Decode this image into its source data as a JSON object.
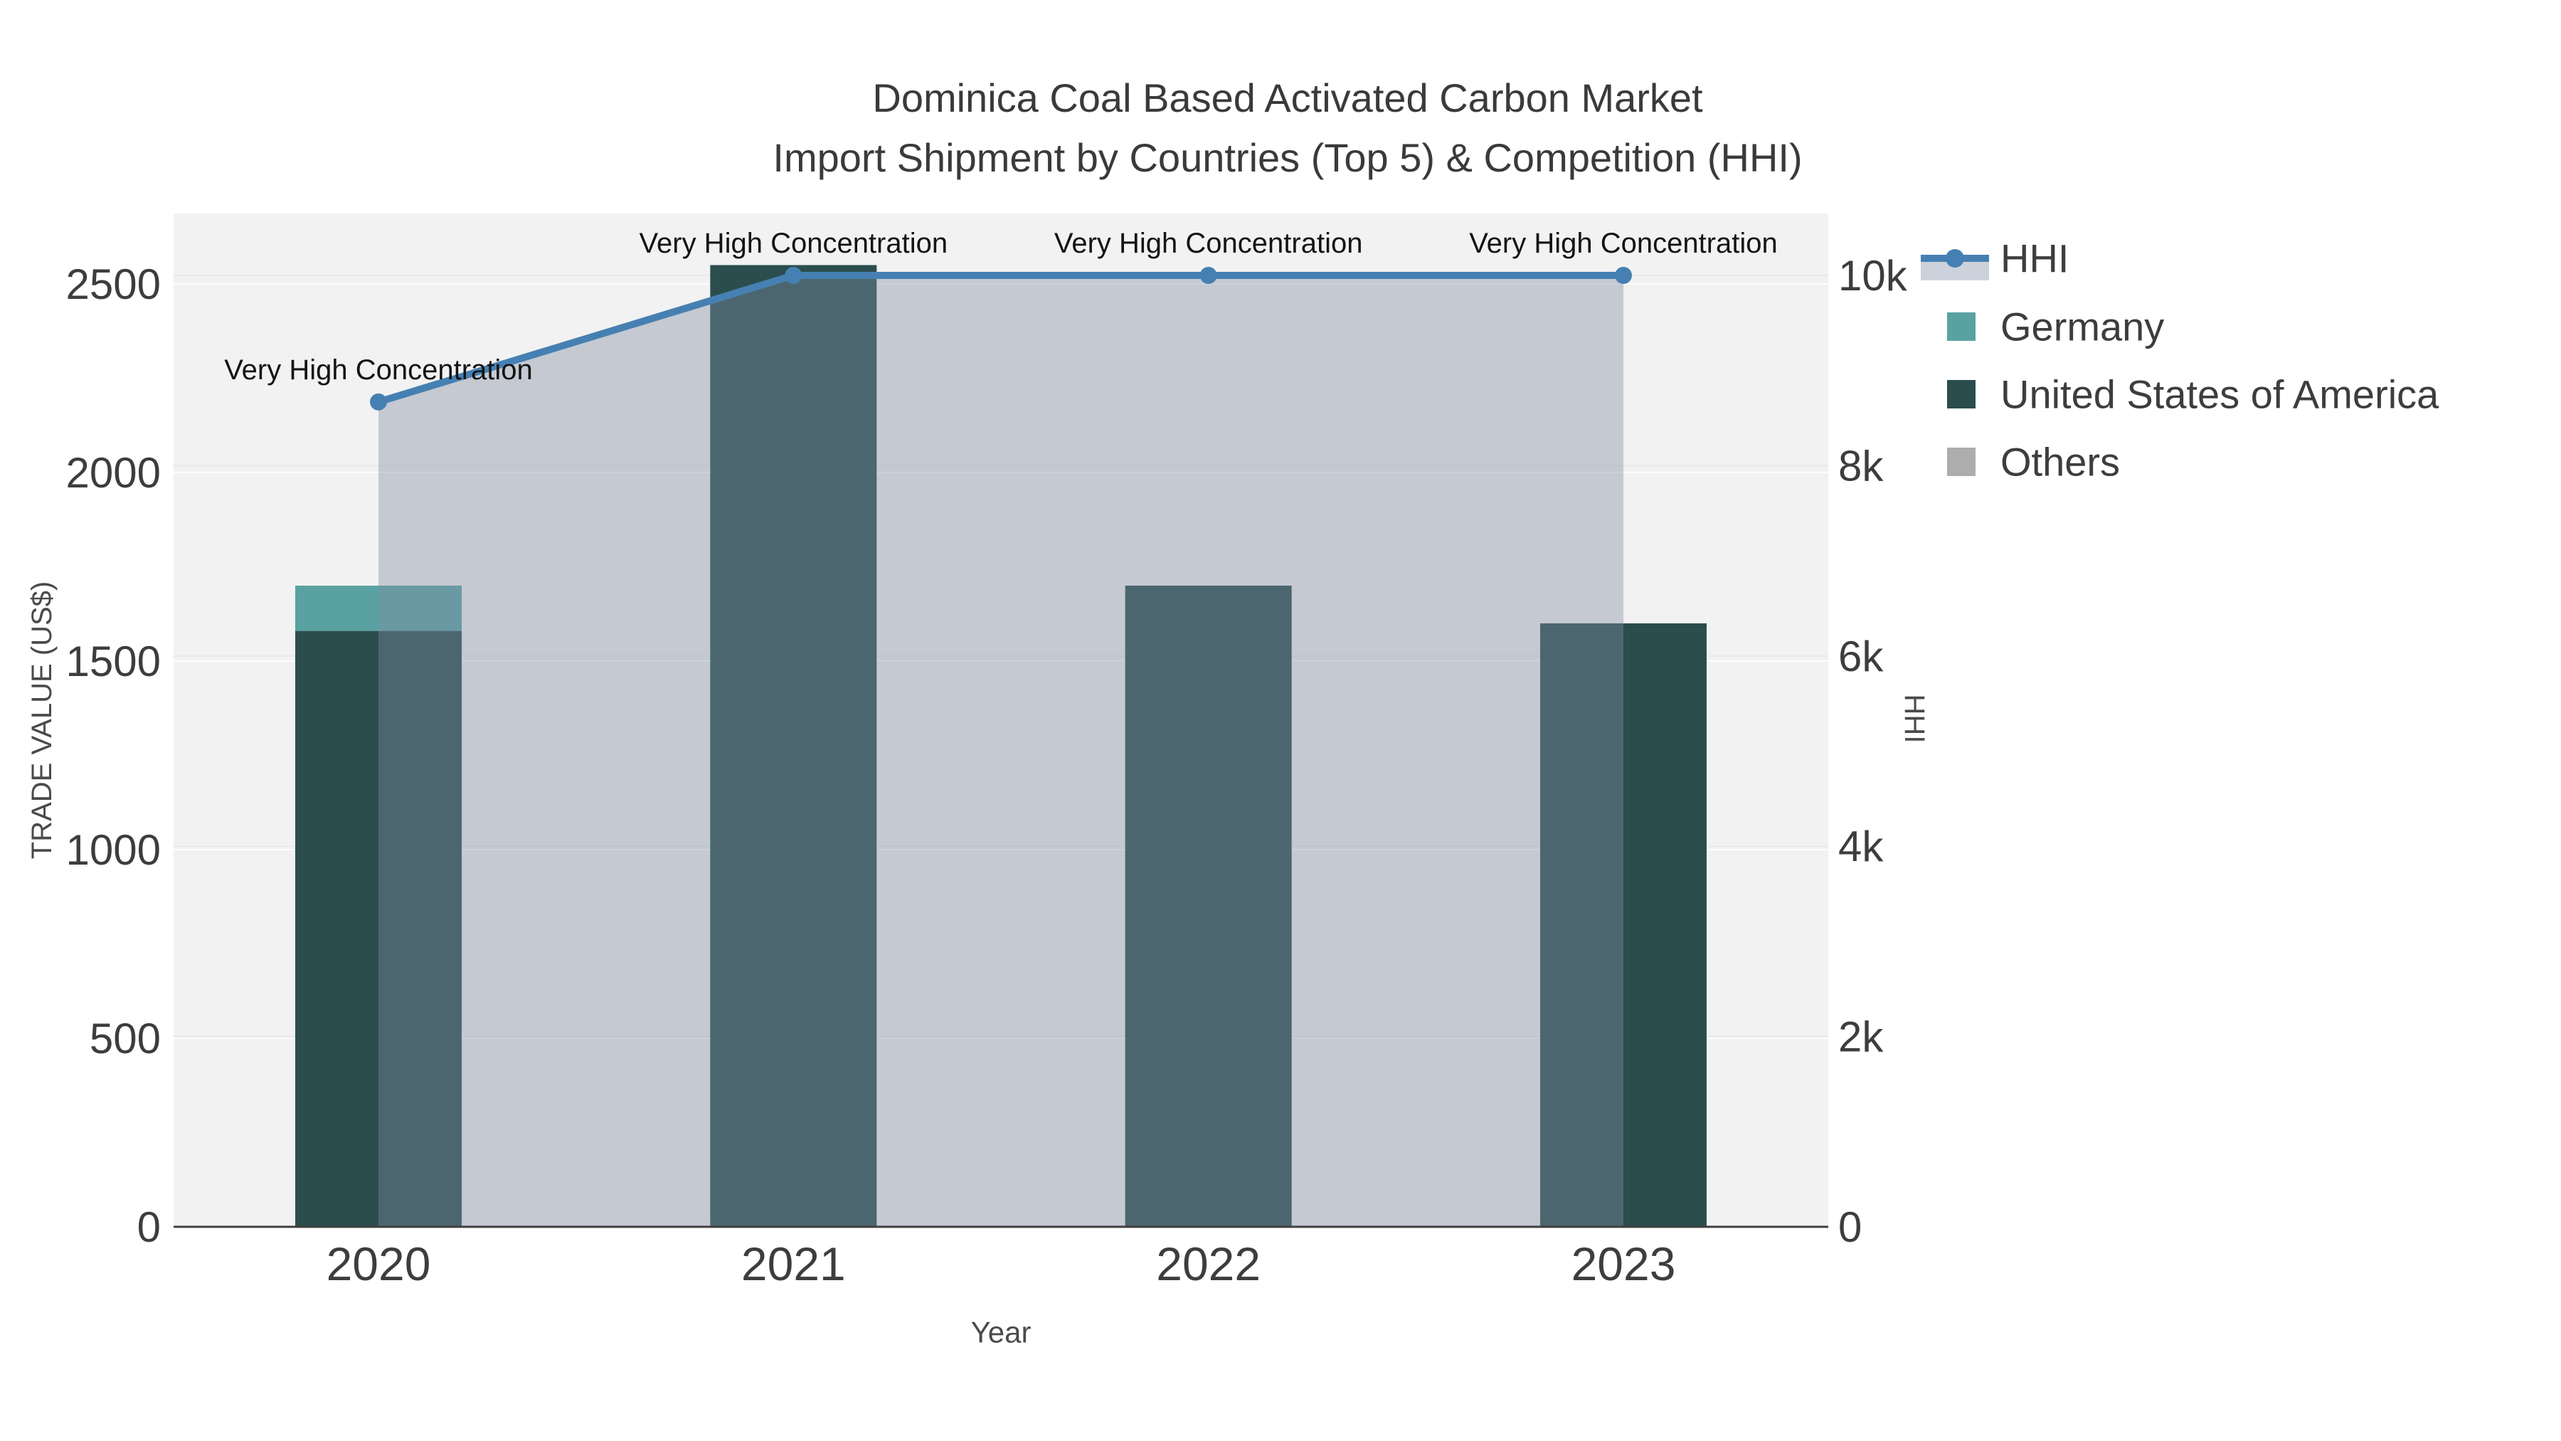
{
  "title": "Dominica Coal Based Activated Carbon Market",
  "subtitle": "Import Shipment by Countries (Top 5) & Competition (HHI)",
  "chart_data": {
    "type": "combo-stacked-bar-line",
    "categories": [
      "2020",
      "2021",
      "2022",
      "2023"
    ],
    "xlabel": "Year",
    "ylabel_left": "TRADE VALUE (US$)",
    "ylabel_right": "HHI",
    "series": [
      {
        "name": "Germany",
        "type": "bar",
        "stack": "trade",
        "color": "#5AA2A2",
        "values": [
          120,
          0,
          0,
          0
        ]
      },
      {
        "name": "United States of America",
        "type": "bar",
        "stack": "trade",
        "color": "#2B4D4D",
        "values": [
          1580,
          2550,
          1700,
          1600
        ]
      },
      {
        "name": "Others",
        "type": "bar",
        "stack": "trade",
        "color": "#ADADAD",
        "values": [
          0,
          0,
          0,
          0
        ]
      },
      {
        "name": "HHI",
        "type": "line",
        "axis": "right",
        "color": "#4680B2",
        "fill": "rgba(127,141,163,0.40)",
        "values": [
          8670,
          10000,
          10000,
          10000
        ]
      }
    ],
    "annotations": [
      {
        "text": "Very High Concentration",
        "point": 0
      },
      {
        "text": "Very High Concentration",
        "point": 1
      },
      {
        "text": "Very High Concentration",
        "point": 2
      },
      {
        "text": "Very High Concentration",
        "point": 3
      }
    ],
    "left_axis": {
      "ticks": [
        0,
        500,
        1000,
        1500,
        2000,
        2500
      ],
      "labels": [
        "0",
        "500",
        "1000",
        "1500",
        "2000",
        "2500"
      ],
      "range": [
        0,
        2687
      ]
    },
    "right_axis": {
      "ticks": [
        0,
        2000,
        4000,
        6000,
        8000,
        10000
      ],
      "labels": [
        "0",
        "2k",
        "4k",
        "6k",
        "8k",
        "10k"
      ],
      "range": [
        0,
        10650
      ]
    },
    "legend": {
      "position": "top-right",
      "items": [
        {
          "label": "HHI",
          "glyph": "line-marker-fill",
          "color": "#4680B2",
          "fill_swatch": "#CCD2DC"
        },
        {
          "label": "Germany",
          "glyph": "square",
          "color": "#5AA2A2"
        },
        {
          "label": "United States of America",
          "glyph": "square",
          "color": "#2B4D4D"
        },
        {
          "label": "Others",
          "glyph": "square",
          "color": "#ADADAD"
        }
      ]
    },
    "grid": true,
    "plot_bg": "#F2F2F2",
    "axis_line_color": "#3F3F3F",
    "tick_color": "#3D3D3D",
    "axis_title_color": "#4A4A4A",
    "annotation_color": "#141414",
    "grid_color_left": "#FFFFFF",
    "grid_color_right": "#E9E9E9"
  }
}
